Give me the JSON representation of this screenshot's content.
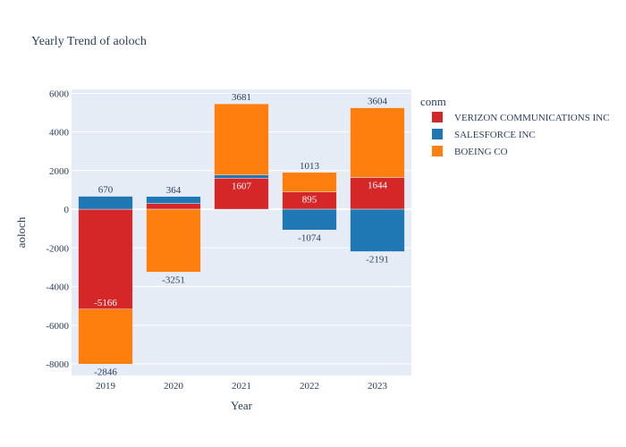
{
  "chart_data": {
    "type": "bar",
    "barmode": "relative",
    "title": "Yearly Trend of aoloch",
    "xlabel": "Year",
    "ylabel": "aoloch",
    "categories": [
      "2019",
      "2020",
      "2021",
      "2022",
      "2023"
    ],
    "ylim": [
      -8600,
      6200
    ],
    "yticks": [
      -8000,
      -6000,
      -4000,
      -2000,
      0,
      2000,
      4000,
      6000
    ],
    "grid": true,
    "legend": {
      "title": "conm",
      "position": "right"
    },
    "series": [
      {
        "name": "VERIZON COMMUNICATIONS INC",
        "color": "#d62728",
        "values": [
          -5166,
          297,
          1607,
          895,
          1644
        ],
        "labels": [
          "-5166",
          "",
          "1607",
          "895",
          "1644"
        ]
      },
      {
        "name": "SALESFORCE INC",
        "color": "#1f77b4",
        "values": [
          670,
          364,
          167,
          -1074,
          -2191
        ],
        "labels": [
          "670",
          "364",
          "",
          "-1074",
          "-2191"
        ]
      },
      {
        "name": "BOEING CO",
        "color": "#ff7f0e",
        "values": [
          -2846,
          -3251,
          3681,
          1013,
          3604
        ],
        "labels": [
          "-2846",
          "-3251",
          "3681",
          "1013",
          "3604"
        ]
      }
    ]
  }
}
